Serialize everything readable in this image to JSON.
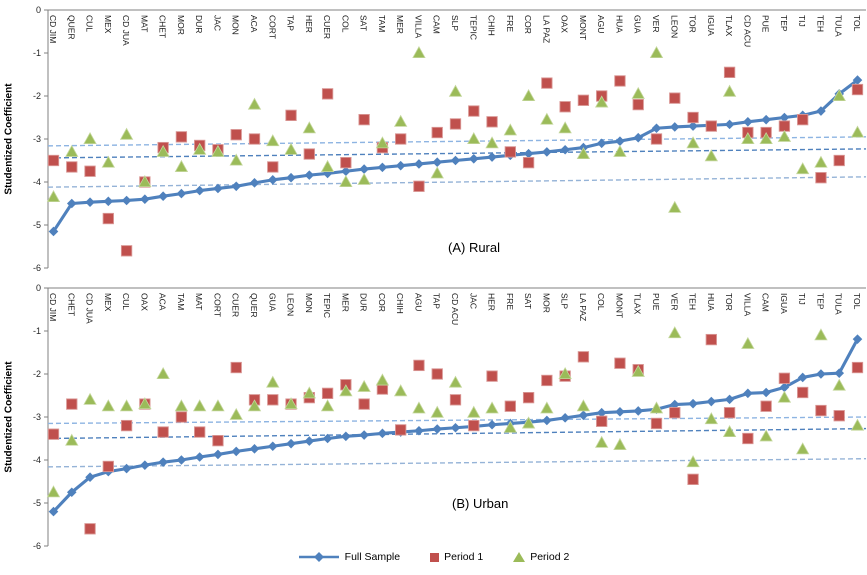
{
  "legend": {
    "full_sample": "Full Sample",
    "period_1": "Period 1",
    "period_2": "Period 2"
  },
  "colors": {
    "full_sample": "#4F81BD",
    "period_1": "#C0504D",
    "period_1_edge": "#D99694",
    "period_2": "#9BBB59",
    "period_2_edge": "#C3D69B",
    "axis": "#808080",
    "tick_text": "#262626",
    "city_text": "#1a1a1a",
    "ref_lines": [
      "#8DB4E2",
      "#4F81BD",
      "#95B3D7"
    ]
  },
  "chart_data": [
    {
      "type": "line",
      "annotation": "(A) Rural",
      "ylabel": "Studentized Coefficient",
      "ylim": [
        -6,
        0
      ],
      "yticks": [
        0,
        -1,
        -2,
        -3,
        -4,
        -5,
        -6
      ],
      "grid": false,
      "legend_position": "bottom",
      "categories": [
        "CD JIM",
        "QUER",
        "CUL",
        "MEX",
        "CD JUA",
        "MAT",
        "CHET",
        "MOR",
        "DUR",
        "JAC",
        "MON",
        "ACA",
        "CORT",
        "TAP",
        "HER",
        "CUER",
        "COL",
        "SAT",
        "TAM",
        "MER",
        "VILLA",
        "CAM",
        "SLP",
        "TEPIC",
        "CHIH",
        "FRE",
        "COR",
        "LA PAZ",
        "OAX",
        "MONT",
        "AGU",
        "HUA",
        "GUA",
        "VER",
        "LEON",
        "TOR",
        "IGUA",
        "TLAX",
        "CD ACU",
        "PUE",
        "TEP",
        "TIJ",
        "TEH",
        "TULA",
        "TOL"
      ],
      "series": [
        {
          "name": "Full Sample",
          "marker": "diamond",
          "line": true,
          "values": [
            -5.15,
            -4.5,
            -4.47,
            -4.45,
            -4.43,
            -4.4,
            -4.33,
            -4.27,
            -4.2,
            -4.15,
            -4.1,
            -4.02,
            -3.95,
            -3.9,
            -3.84,
            -3.8,
            -3.75,
            -3.7,
            -3.66,
            -3.62,
            -3.58,
            -3.54,
            -3.5,
            -3.46,
            -3.42,
            -3.38,
            -3.34,
            -3.3,
            -3.25,
            -3.2,
            -3.1,
            -3.05,
            -2.97,
            -2.75,
            -2.72,
            -2.7,
            -2.68,
            -2.66,
            -2.6,
            -2.55,
            -2.5,
            -2.45,
            -2.35,
            -1.95,
            -1.63
          ]
        },
        {
          "name": "Period 1",
          "marker": "square",
          "line": false,
          "values": [
            -3.5,
            -3.65,
            -3.75,
            -4.85,
            -5.6,
            -4.0,
            -3.2,
            -2.95,
            -3.15,
            -3.25,
            -2.9,
            -3.0,
            -3.65,
            -2.45,
            -3.35,
            -1.95,
            -3.55,
            -2.55,
            -3.2,
            -3.0,
            -4.1,
            -2.85,
            -2.65,
            -2.35,
            -2.6,
            -3.3,
            -3.55,
            -1.7,
            -2.25,
            -2.1,
            -2.0,
            -1.65,
            -2.2,
            -3.0,
            -2.05,
            -2.5,
            -2.7,
            -1.45,
            -2.85,
            -2.85,
            -2.7,
            -2.55,
            -3.9,
            -3.5,
            -1.85
          ]
        },
        {
          "name": "Period 2",
          "marker": "triangle",
          "line": false,
          "values": [
            -4.35,
            -3.3,
            -3.0,
            -3.55,
            -2.9,
            -4.0,
            -3.3,
            -3.65,
            -3.25,
            -3.3,
            -3.5,
            -2.2,
            -3.05,
            -3.25,
            -2.75,
            -3.65,
            -4.0,
            -3.95,
            -3.1,
            -2.6,
            -1.0,
            -3.8,
            -1.9,
            -3.0,
            -3.1,
            -2.8,
            -2.0,
            -2.55,
            -2.75,
            -3.35,
            -2.15,
            -3.3,
            -1.95,
            -1.0,
            -4.6,
            -3.1,
            -3.4,
            -1.9,
            -3.0,
            -3.0,
            -2.95,
            -3.7,
            -3.55,
            -2.0,
            -2.85
          ]
        }
      ],
      "ref_lines": [
        {
          "left": -3.16,
          "right": -2.95
        },
        {
          "left": -3.44,
          "right": -3.23
        },
        {
          "left": -4.12,
          "right": -3.88
        }
      ]
    },
    {
      "type": "line",
      "annotation": "(B) Urban",
      "ylabel": "Studentized Coefficient",
      "ylim": [
        -6,
        0
      ],
      "yticks": [
        0,
        -1,
        -2,
        -3,
        -4,
        -5,
        -6
      ],
      "grid": false,
      "legend_position": "bottom",
      "categories": [
        "CD JIM",
        "CHET",
        "CD JUA",
        "MEX",
        "CUL",
        "OAX",
        "ACA",
        "TAM",
        "MAT",
        "CORT",
        "CUER",
        "QUER",
        "GUA",
        "LEON",
        "MON",
        "TEPIC",
        "MER",
        "DUR",
        "COR",
        "CHIH",
        "AGU",
        "TAP",
        "CD ACU",
        "JAC",
        "HER",
        "FRE",
        "SAT",
        "MOR",
        "SLP",
        "LA PAZ",
        "COL",
        "MONT",
        "TLAX",
        "PUE",
        "VER",
        "TEH",
        "HUA",
        "TOR",
        "VILLA",
        "CAM",
        "IGUA",
        "TIJ",
        "TEP",
        "TULA",
        "TOL"
      ],
      "series": [
        {
          "name": "Full Sample",
          "marker": "diamond",
          "line": true,
          "values": [
            -5.2,
            -4.75,
            -4.4,
            -4.27,
            -4.2,
            -4.12,
            -4.05,
            -4.0,
            -3.93,
            -3.87,
            -3.8,
            -3.74,
            -3.68,
            -3.62,
            -3.56,
            -3.5,
            -3.45,
            -3.42,
            -3.38,
            -3.35,
            -3.32,
            -3.28,
            -3.25,
            -3.22,
            -3.18,
            -3.15,
            -3.12,
            -3.08,
            -3.02,
            -2.96,
            -2.9,
            -2.88,
            -2.86,
            -2.82,
            -2.71,
            -2.69,
            -2.64,
            -2.59,
            -2.45,
            -2.43,
            -2.31,
            -2.08,
            -2.0,
            -1.98,
            -1.19
          ]
        },
        {
          "name": "Period 1",
          "marker": "square",
          "line": false,
          "values": [
            -3.4,
            -2.7,
            -5.6,
            -4.15,
            -3.2,
            -2.7,
            -3.35,
            -3.0,
            -3.35,
            -3.55,
            -1.85,
            -2.6,
            -2.6,
            -2.7,
            -2.55,
            -2.45,
            -2.25,
            -2.7,
            -2.35,
            -3.3,
            -1.8,
            -2.0,
            -2.6,
            -3.2,
            -2.05,
            -2.75,
            -2.55,
            -2.15,
            -2.05,
            -1.6,
            -3.1,
            -1.75,
            -1.9,
            -3.15,
            -2.9,
            -4.45,
            -1.2,
            -2.9,
            -3.5,
            -2.75,
            -2.1,
            -2.43,
            -2.85,
            -2.97,
            -1.85
          ]
        },
        {
          "name": "Period 2",
          "marker": "triangle",
          "line": false,
          "values": [
            -4.75,
            -3.55,
            -2.6,
            -2.75,
            -2.75,
            -2.7,
            -2.0,
            -2.75,
            -2.75,
            -2.75,
            -2.95,
            -2.75,
            -2.2,
            -2.7,
            -2.45,
            -2.75,
            -2.4,
            -2.3,
            -2.15,
            -2.4,
            -2.8,
            -2.9,
            -2.2,
            -2.9,
            -2.8,
            -3.25,
            -3.15,
            -2.8,
            -2.0,
            -2.75,
            -3.6,
            -3.65,
            -1.95,
            -2.8,
            -1.05,
            -4.05,
            -3.05,
            -3.35,
            -1.3,
            -3.45,
            -2.55,
            -3.75,
            -1.1,
            -2.27,
            -3.2
          ]
        }
      ],
      "ref_lines": [
        {
          "left": -3.15,
          "right": -3.0
        },
        {
          "left": -3.5,
          "right": -3.27
        },
        {
          "left": -4.16,
          "right": -3.97
        }
      ]
    }
  ]
}
